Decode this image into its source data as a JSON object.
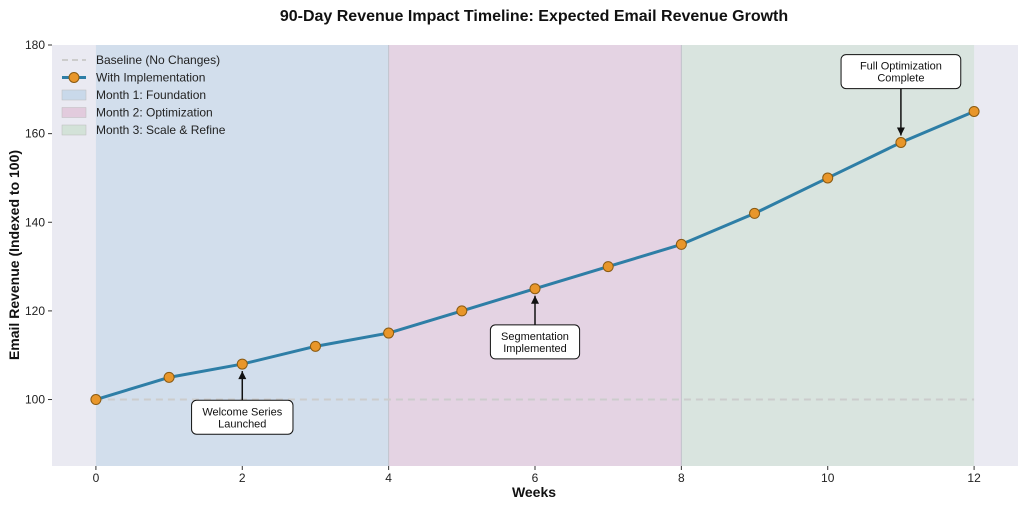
{
  "chart_data": {
    "type": "line",
    "title": "90-Day Revenue Impact Timeline: Expected Email Revenue Growth",
    "xlabel": "Weeks",
    "ylabel": "Email Revenue (Indexed to 100)",
    "xlim": [
      -0.6,
      12.6
    ],
    "ylim": [
      85,
      180
    ],
    "xticks": [
      0,
      2,
      4,
      6,
      8,
      10,
      12
    ],
    "yticks": [
      100,
      120,
      140,
      160,
      180
    ],
    "grid": false,
    "legend_position": "top-left",
    "series": [
      {
        "name": "Baseline (No Changes)",
        "style": "dashed",
        "color": "#cccccc",
        "x": [
          0,
          1,
          2,
          3,
          4,
          5,
          6,
          7,
          8,
          9,
          10,
          11,
          12
        ],
        "values": [
          100,
          100,
          100,
          100,
          100,
          100,
          100,
          100,
          100,
          100,
          100,
          100,
          100
        ]
      },
      {
        "name": "With Implementation",
        "style": "solid-markers",
        "color": "#2e7ea6",
        "marker_color": "#e8962a",
        "x": [
          0,
          1,
          2,
          3,
          4,
          5,
          6,
          7,
          8,
          9,
          10,
          11,
          12
        ],
        "values": [
          100,
          105,
          108,
          112,
          115,
          120,
          125,
          130,
          135,
          142,
          150,
          158,
          165
        ]
      }
    ],
    "regions": [
      {
        "name": "Month 1: Foundation",
        "x_start": 0,
        "x_end": 4,
        "color": "#c9d9ea"
      },
      {
        "name": "Month 2: Optimization",
        "x_start": 4,
        "x_end": 8,
        "color": "#e2cbdd"
      },
      {
        "name": "Month 3: Scale & Refine",
        "x_start": 8,
        "x_end": 12,
        "color": "#d3e2d8"
      }
    ],
    "annotations": [
      {
        "lines": [
          "Welcome Series",
          "Launched"
        ],
        "point": [
          2,
          108
        ],
        "text_at": [
          2,
          96
        ],
        "direction": "below"
      },
      {
        "lines": [
          "Segmentation",
          "Implemented"
        ],
        "point": [
          6,
          125
        ],
        "text_at": [
          6,
          113
        ],
        "direction": "below"
      },
      {
        "lines": [
          "Full Optimization",
          "Complete"
        ],
        "point": [
          11,
          158
        ],
        "text_at": [
          11,
          174
        ],
        "direction": "above"
      }
    ],
    "colors": {
      "background": "#eaeaf2",
      "line": "#2e7ea6",
      "marker": "#e8962a",
      "marker_edge": "#8a5a12"
    }
  }
}
